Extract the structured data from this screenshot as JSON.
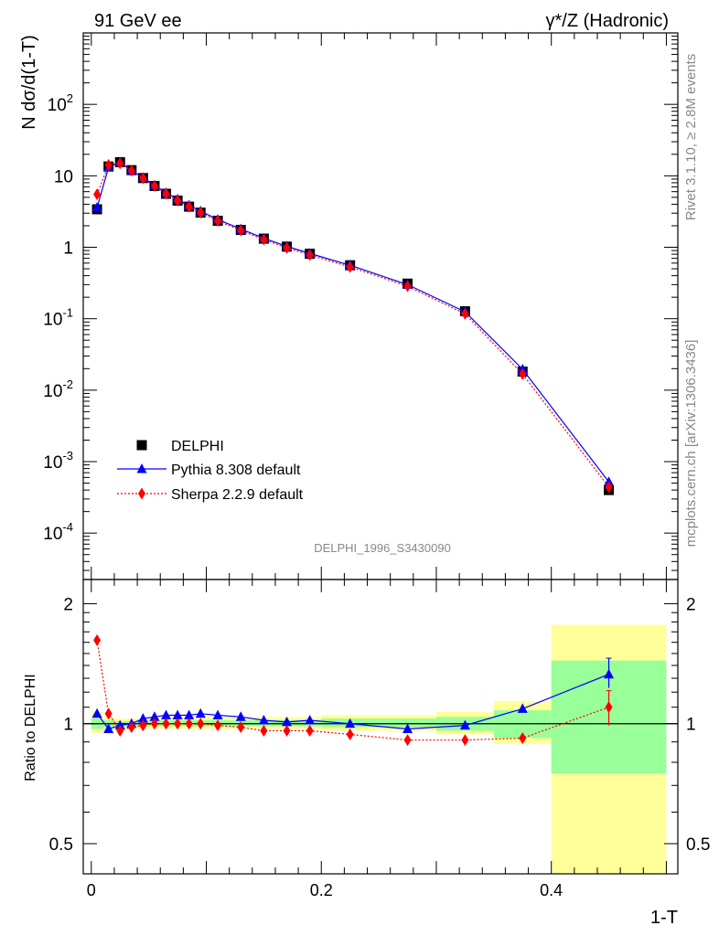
{
  "header": {
    "left_label": "91 GeV ee",
    "right_label": "γ*/Z (Hadronic)"
  },
  "side_text": {
    "rivet": "Rivet 3.1.10, ≥ 2.8M events",
    "mcplots": "mcplots.cern.ch [arXiv:1306.3436]"
  },
  "analysis_id": "DELPHI_1996_S3430090",
  "colors": {
    "data": "#000000",
    "pythia": "#0000ff",
    "sherpa": "#ff0000",
    "band_inner": "#99ff99",
    "band_outer": "#ffff99"
  },
  "chart_data": [
    {
      "type": "scatter",
      "panel": "main",
      "ylabel": "N dσ/d(1-T)",
      "xlim": [
        -0.007,
        0.51
      ],
      "ylim_log10": [
        -4.65,
        3.0
      ],
      "y_scale": "log",
      "y_tick_labels": [
        "10^-4",
        "10^-3",
        "10^-2",
        "10^-1",
        "1",
        "10",
        "10^2"
      ],
      "legend_position": "lower-left",
      "x": [
        0.005,
        0.015,
        0.025,
        0.035,
        0.045,
        0.055,
        0.065,
        0.075,
        0.085,
        0.095,
        0.11,
        0.13,
        0.15,
        0.17,
        0.19,
        0.225,
        0.275,
        0.325,
        0.375,
        0.45
      ],
      "series": [
        {
          "name": "DELPHI",
          "marker": "square",
          "values": [
            3.4,
            13.5,
            15.5,
            12.0,
            9.3,
            7.2,
            5.6,
            4.5,
            3.7,
            3.05,
            2.35,
            1.75,
            1.32,
            1.02,
            0.81,
            0.56,
            0.31,
            0.127,
            0.0182,
            0.0004
          ]
        },
        {
          "name": "Pythia 8.308 default",
          "marker": "triangle",
          "line": "solid",
          "values": [
            3.6,
            13.1,
            15.6,
            11.8,
            9.5,
            7.4,
            5.8,
            4.7,
            3.88,
            3.2,
            2.45,
            1.8,
            1.34,
            1.03,
            0.82,
            0.56,
            0.3,
            0.125,
            0.0196,
            0.00052
          ]
        },
        {
          "name": "Sherpa 2.2.9 default",
          "marker": "diamond",
          "line": "dotted",
          "values": [
            5.5,
            14.2,
            14.9,
            11.8,
            9.2,
            7.2,
            5.6,
            4.5,
            3.7,
            3.05,
            2.34,
            1.72,
            1.28,
            0.98,
            0.78,
            0.53,
            0.285,
            0.117,
            0.0168,
            0.00044
          ]
        }
      ]
    },
    {
      "type": "scatter",
      "panel": "ratio",
      "xlabel": "1-T",
      "ylabel": "Ratio to DELPHI",
      "xlim": [
        -0.007,
        0.51
      ],
      "ylim": [
        0.42,
        2.3
      ],
      "x_tick_labels": [
        "0",
        "0.2",
        "0.4"
      ],
      "y_tick_labels": [
        "0.5",
        "1",
        "2"
      ],
      "x": [
        0.005,
        0.015,
        0.025,
        0.035,
        0.045,
        0.055,
        0.065,
        0.075,
        0.085,
        0.095,
        0.11,
        0.13,
        0.15,
        0.17,
        0.19,
        0.225,
        0.275,
        0.325,
        0.375,
        0.45
      ],
      "series": [
        {
          "name": "Pythia 8.308 default",
          "marker": "triangle",
          "line": "solid",
          "values": [
            1.06,
            0.97,
            0.99,
            1.0,
            1.03,
            1.04,
            1.05,
            1.05,
            1.05,
            1.06,
            1.05,
            1.04,
            1.02,
            1.01,
            1.02,
            1.0,
            0.97,
            0.99,
            1.09,
            1.33
          ],
          "last_point_error": [
            1.23,
            1.46
          ]
        },
        {
          "name": "Sherpa 2.2.9 default",
          "marker": "diamond",
          "line": "dotted",
          "values": [
            1.62,
            1.06,
            0.96,
            0.98,
            0.99,
            1.0,
            1.0,
            1.0,
            1.0,
            1.0,
            0.99,
            0.98,
            0.96,
            0.96,
            0.96,
            0.94,
            0.91,
            0.91,
            0.92,
            1.1
          ],
          "last_point_error": [
            0.99,
            1.21
          ]
        }
      ],
      "uncertainty_bands": {
        "bins": [
          [
            0.0,
            0.01
          ],
          [
            0.01,
            0.02
          ],
          [
            0.02,
            0.05
          ],
          [
            0.05,
            0.1
          ],
          [
            0.1,
            0.2
          ],
          [
            0.2,
            0.3
          ],
          [
            0.3,
            0.35
          ],
          [
            0.35,
            0.4
          ],
          [
            0.4,
            0.5
          ]
        ],
        "inner": [
          [
            0.97,
            1.03
          ],
          [
            0.98,
            1.02
          ],
          [
            0.985,
            1.015
          ],
          [
            0.985,
            1.02
          ],
          [
            0.985,
            1.02
          ],
          [
            0.98,
            1.03
          ],
          [
            0.96,
            1.04
          ],
          [
            0.92,
            1.08
          ],
          [
            0.75,
            1.44
          ]
        ],
        "outer": [
          [
            0.95,
            1.07
          ],
          [
            0.96,
            1.04
          ],
          [
            0.97,
            1.03
          ],
          [
            0.97,
            1.035
          ],
          [
            0.97,
            1.04
          ],
          [
            0.96,
            1.05
          ],
          [
            0.94,
            1.07
          ],
          [
            0.89,
            1.14
          ],
          [
            0.42,
            1.77
          ]
        ]
      }
    }
  ]
}
